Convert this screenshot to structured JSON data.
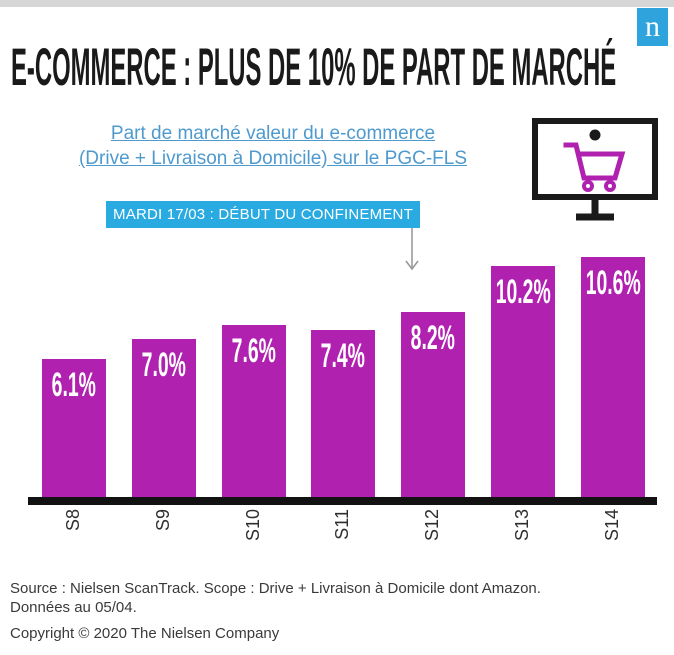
{
  "brand": {
    "logo_letter": "n",
    "logo_color": "#2ea3dc"
  },
  "header": {
    "title": "E-COMMERCE : PLUS DE 10% DE PART DE MARCHÉ"
  },
  "subtitle": {
    "line1": "Part de marché  valeur du e-commerce",
    "line2": "(Drive + Livraison à Domicile) sur le PGC-FLS",
    "color": "#4e9acf"
  },
  "annotation": {
    "text": "MARDI 17/03 : DÉBUT DU CONFINEMENT",
    "bg_color": "#29abe2",
    "arrow_color": "#9b9b9b",
    "points_to": "S12"
  },
  "icons": {
    "monitor_cart": "monitor-with-shopping-cart",
    "monitor_color": "#1a1a1a",
    "cart_color": "#b021b0"
  },
  "chart_data": {
    "type": "bar",
    "title": "Part de marché valeur du e-commerce (Drive + Livraison à Domicile) sur le PGC-FLS",
    "categories": [
      "S8",
      "S9",
      "S10",
      "S11",
      "S12",
      "S13",
      "S14"
    ],
    "values": [
      6.1,
      7.0,
      7.6,
      7.4,
      8.2,
      10.2,
      10.6
    ],
    "value_labels": [
      "6.1%",
      "7.0%",
      "7.6%",
      "7.4%",
      "8.2%",
      "10.2%",
      "10.6%"
    ],
    "bar_color": "#b021b0",
    "value_label_color": "#ffffff",
    "value_label_position": "inside-top",
    "xlabel": "",
    "ylabel": "",
    "ylim": [
      0,
      11
    ],
    "grid": false,
    "legend": false,
    "axis_line_color": "#121212"
  },
  "footer": {
    "source_line1": "Source : Nielsen ScanTrack. Scope : Drive + Livraison à Domicile dont Amazon.",
    "source_line2": "Données au 05/04.",
    "copyright": "Copyright © 2020 The Nielsen Company"
  }
}
